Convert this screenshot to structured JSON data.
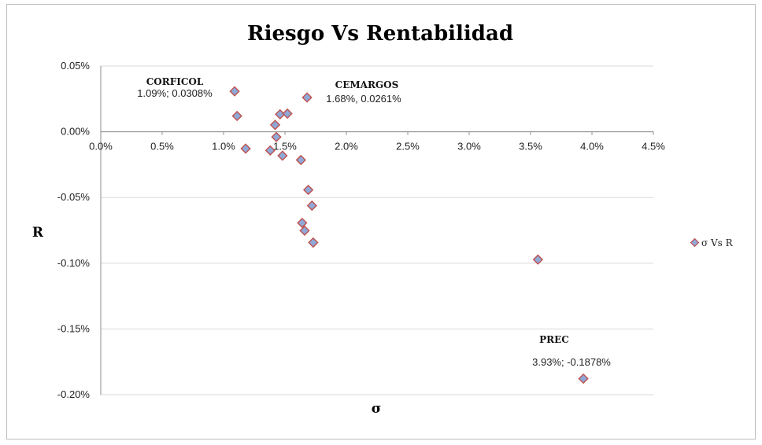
{
  "chart_data": {
    "type": "scatter",
    "title": "Riesgo Vs Rentabilidad",
    "xlabel": "σ",
    "ylabel": "R",
    "xlim": [
      0,
      0.045
    ],
    "ylim": [
      -0.002,
      0.0005
    ],
    "x_ticks": [
      "0.0%",
      "0.5%",
      "1.0%",
      "1.5%",
      "2.0%",
      "2.5%",
      "3.0%",
      "3.5%",
      "4.0%",
      "4.5%"
    ],
    "y_ticks": [
      "0.05%",
      "0.00%",
      "-0.05%",
      "-0.10%",
      "-0.15%",
      "-0.20%"
    ],
    "grid": "horizontal",
    "legend_position": "right",
    "series": [
      {
        "name": "σ Vs R",
        "marker_fill": "#8ea9d8",
        "marker_stroke": "#c0504d",
        "points": [
          {
            "x": 0.0109,
            "y": 0.000308
          },
          {
            "x": 0.0111,
            "y": 0.00012
          },
          {
            "x": 0.0118,
            "y": -0.000128
          },
          {
            "x": 0.0138,
            "y": -0.000142
          },
          {
            "x": 0.0142,
            "y": 5.2e-05
          },
          {
            "x": 0.0143,
            "y": -4e-05
          },
          {
            "x": 0.0146,
            "y": 0.000133
          },
          {
            "x": 0.0148,
            "y": -0.000182
          },
          {
            "x": 0.0152,
            "y": 0.000138
          },
          {
            "x": 0.0163,
            "y": -0.000215
          },
          {
            "x": 0.0168,
            "y": 0.000261
          },
          {
            "x": 0.0169,
            "y": -0.000442
          },
          {
            "x": 0.0172,
            "y": -0.000562
          },
          {
            "x": 0.0164,
            "y": -0.000693
          },
          {
            "x": 0.0166,
            "y": -0.000752
          },
          {
            "x": 0.0173,
            "y": -0.000843
          },
          {
            "x": 0.0356,
            "y": -0.000972
          },
          {
            "x": 0.0393,
            "y": -0.001878
          }
        ]
      }
    ],
    "annotations": [
      {
        "name": "CORFICOL",
        "value": "1.09%; 0.0308%"
      },
      {
        "name": "CEMARGOS",
        "value": "1.68%, 0.0261%"
      },
      {
        "name": "PREC",
        "value": "3.93%; -0.1878%"
      }
    ],
    "colors": {
      "grid": "#d9d9d9",
      "axis": "#8c8c8c",
      "frame": "#bdbdbd"
    }
  }
}
